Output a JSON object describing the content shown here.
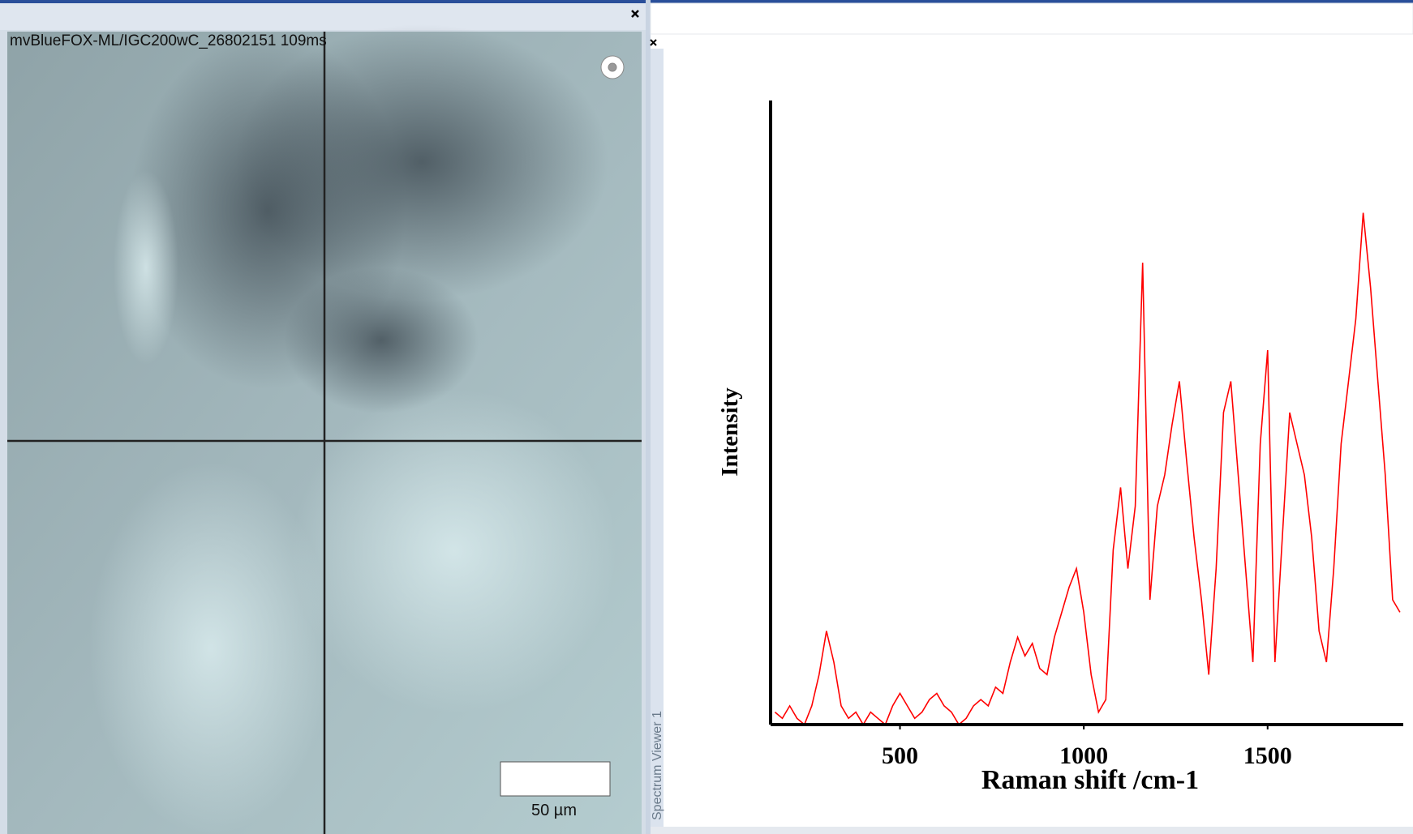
{
  "camera": {
    "title": "mvBlueFOX-ML/IGC200wC_26802151   109ms",
    "scale_label": "50 µm"
  },
  "spectrum_panel": {
    "tab": "Spectrum Viewer 1"
  },
  "chart_data": {
    "type": "line",
    "xlabel": "Raman shift /cm-1",
    "ylabel": "Intensity",
    "color": "#ff0000",
    "x": [
      160,
      180,
      200,
      220,
      240,
      260,
      280,
      300,
      320,
      340,
      360,
      380,
      400,
      420,
      440,
      460,
      480,
      500,
      520,
      540,
      560,
      580,
      600,
      620,
      640,
      660,
      680,
      700,
      720,
      740,
      760,
      780,
      800,
      820,
      840,
      860,
      880,
      900,
      920,
      940,
      960,
      980,
      1000,
      1020,
      1040,
      1060,
      1080,
      1100,
      1120,
      1140,
      1160,
      1180,
      1200,
      1220,
      1240,
      1260,
      1280,
      1300,
      1320,
      1340,
      1360,
      1380,
      1400,
      1420,
      1440,
      1460,
      1480,
      1500,
      1520,
      1540,
      1560,
      1580,
      1600,
      1620,
      1640,
      1660,
      1680,
      1700,
      1720,
      1740,
      1760,
      1780,
      1800,
      1820,
      1840,
      1860
    ],
    "values": [
      2,
      1,
      3,
      1,
      0,
      3,
      8,
      15,
      10,
      3,
      1,
      2,
      0,
      2,
      1,
      0,
      3,
      5,
      3,
      1,
      2,
      4,
      5,
      3,
      2,
      0,
      1,
      3,
      4,
      3,
      6,
      5,
      10,
      14,
      11,
      13,
      9,
      8,
      14,
      18,
      22,
      25,
      18,
      8,
      2,
      4,
      28,
      38,
      25,
      35,
      74,
      20,
      35,
      40,
      48,
      55,
      42,
      30,
      20,
      8,
      25,
      50,
      55,
      40,
      25,
      10,
      45,
      60,
      10,
      30,
      50,
      45,
      40,
      30,
      15,
      10,
      25,
      45,
      55,
      65,
      82,
      70,
      55,
      40,
      20,
      18
    ],
    "xlim": [
      148,
      1869
    ],
    "ylim": [
      0,
      100
    ],
    "xticks": [
      500,
      1000,
      1500
    ]
  }
}
